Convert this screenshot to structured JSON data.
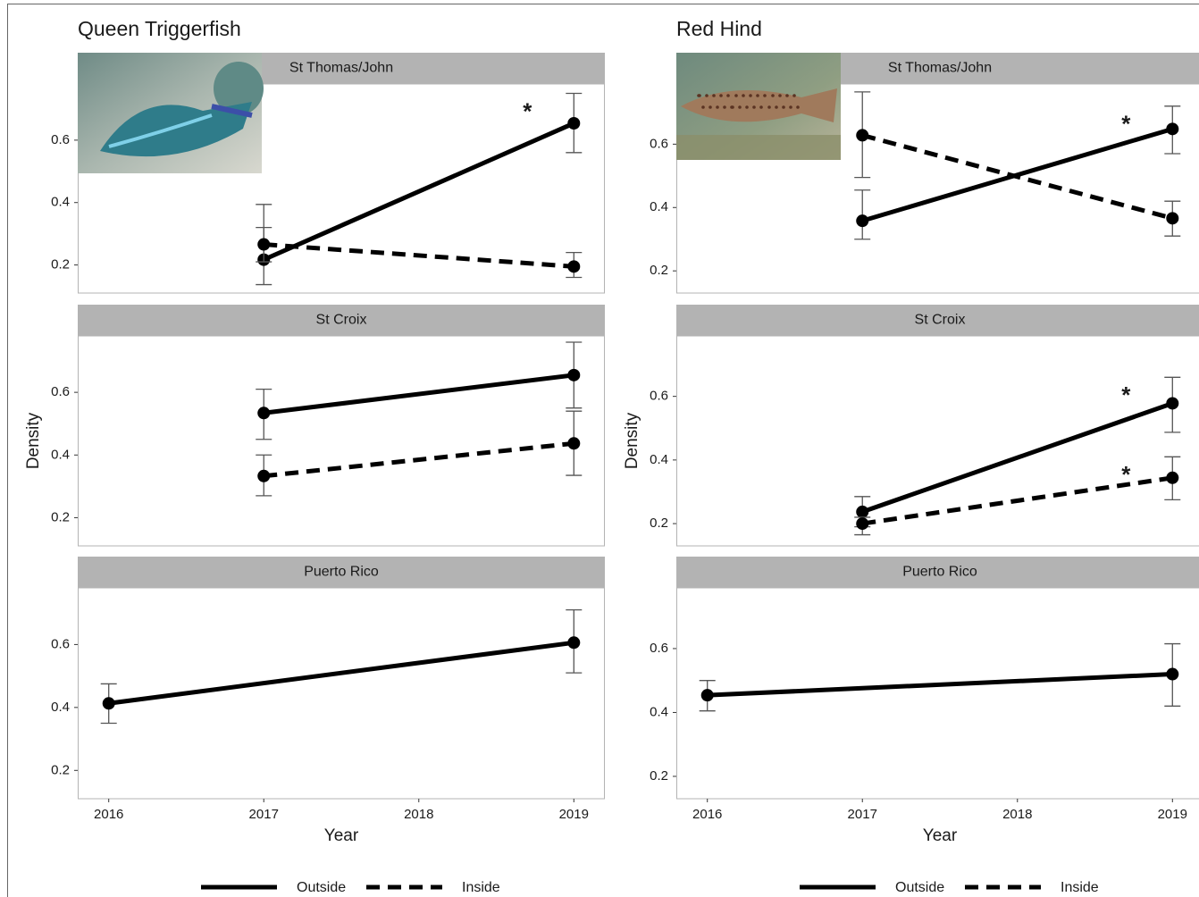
{
  "chart_data": [
    {
      "type": "line",
      "title": "Queen Triggerfish",
      "xlabel": "Year",
      "ylabel": "Density",
      "xlim": [
        2015.8,
        2019.2
      ],
      "xticks": [
        2016,
        2017,
        2018,
        2019
      ],
      "ylim": [
        0.11,
        0.78
      ],
      "yticks": [
        0.2,
        0.4,
        0.6
      ],
      "legend": "bottom",
      "facets": [
        {
          "name": "St Thomas/John",
          "series": [
            {
              "name": "Outside",
              "color": "#000000",
              "linestyle": "solid",
              "x": [
                2017,
                2019
              ],
              "values": [
                0.217,
                0.654
              ],
              "lower": [
                0.137,
                0.56
              ],
              "upper": [
                0.394,
                0.75
              ],
              "annotations": [
                null,
                "*"
              ]
            },
            {
              "name": "Inside",
              "color": "#000000",
              "linestyle": "dashed",
              "x": [
                2017,
                2019
              ],
              "values": [
                0.266,
                0.195
              ],
              "lower": [
                0.21,
                0.16
              ],
              "upper": [
                0.32,
                0.24
              ],
              "annotations": [
                null,
                null
              ]
            }
          ]
        },
        {
          "name": "St Croix",
          "series": [
            {
              "name": "Outside",
              "color": "#000000",
              "linestyle": "solid",
              "x": [
                2017,
                2019
              ],
              "values": [
                0.534,
                0.655
              ],
              "lower": [
                0.45,
                0.55
              ],
              "upper": [
                0.61,
                0.76
              ],
              "annotations": [
                null,
                null
              ]
            },
            {
              "name": "Inside",
              "color": "#000000",
              "linestyle": "dashed",
              "x": [
                2017,
                2019
              ],
              "values": [
                0.333,
                0.437
              ],
              "lower": [
                0.27,
                0.335
              ],
              "upper": [
                0.4,
                0.54
              ],
              "annotations": [
                null,
                null
              ]
            }
          ]
        },
        {
          "name": "Puerto Rico",
          "series": [
            {
              "name": "Outside",
              "color": "#000000",
              "linestyle": "solid",
              "x": [
                2016,
                2019
              ],
              "values": [
                0.413,
                0.606
              ],
              "lower": [
                0.35,
                0.51
              ],
              "upper": [
                0.475,
                0.71
              ],
              "annotations": [
                null,
                null
              ]
            }
          ]
        }
      ]
    },
    {
      "type": "line",
      "title": "Red Hind",
      "xlabel": "Year",
      "ylabel": "Density",
      "xlim": [
        2015.8,
        2019.2
      ],
      "xticks": [
        2016,
        2017,
        2018,
        2019
      ],
      "ylim": [
        0.13,
        0.79
      ],
      "yticks": [
        0.2,
        0.4,
        0.6
      ],
      "legend": "bottom",
      "facets": [
        {
          "name": "St Thomas/John",
          "series": [
            {
              "name": "Outside",
              "color": "#000000",
              "linestyle": "solid",
              "x": [
                2017,
                2019
              ],
              "values": [
                0.358,
                0.648
              ],
              "lower": [
                0.3,
                0.57
              ],
              "upper": [
                0.455,
                0.72
              ],
              "annotations": [
                null,
                "*"
              ]
            },
            {
              "name": "Inside",
              "color": "#000000",
              "linestyle": "dashed",
              "x": [
                2017,
                2019
              ],
              "values": [
                0.628,
                0.366
              ],
              "lower": [
                0.495,
                0.31
              ],
              "upper": [
                0.765,
                0.42
              ],
              "annotations": [
                null,
                null
              ]
            }
          ]
        },
        {
          "name": "St Croix",
          "series": [
            {
              "name": "Outside",
              "color": "#000000",
              "linestyle": "solid",
              "x": [
                2017,
                2019
              ],
              "values": [
                0.237,
                0.578
              ],
              "lower": [
                0.19,
                0.487
              ],
              "upper": [
                0.285,
                0.66
              ],
              "annotations": [
                null,
                "*"
              ]
            },
            {
              "name": "Inside",
              "color": "#000000",
              "linestyle": "dashed",
              "x": [
                2017,
                2019
              ],
              "values": [
                0.2,
                0.344
              ],
              "lower": [
                0.165,
                0.275
              ],
              "upper": [
                0.22,
                0.41
              ],
              "annotations": [
                null,
                "*"
              ]
            }
          ]
        },
        {
          "name": "Puerto Rico",
          "series": [
            {
              "name": "Outside",
              "color": "#000000",
              "linestyle": "solid",
              "x": [
                2016,
                2019
              ],
              "values": [
                0.454,
                0.52
              ],
              "lower": [
                0.405,
                0.42
              ],
              "upper": [
                0.5,
                0.615
              ],
              "annotations": [
                null,
                null
              ]
            }
          ]
        }
      ]
    }
  ]
}
